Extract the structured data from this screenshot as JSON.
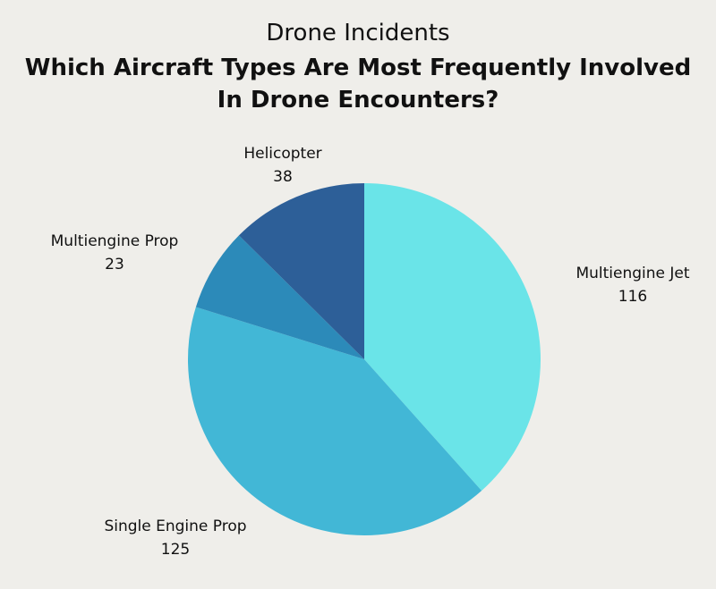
{
  "chart_data": {
    "type": "pie",
    "title": "Drone Incidents",
    "subtitle": "Which Aircraft Types Are Most Frequently Involved In Drone Encounters?",
    "categories": [
      "Multiengine Jet",
      "Single Engine Prop",
      "Multiengine Prop",
      "Helicopter"
    ],
    "values": [
      116,
      125,
      23,
      38
    ],
    "value_labels": [
      "116",
      "125",
      "23",
      "38"
    ],
    "colors": [
      "#6AE4E8",
      "#42B7D6",
      "#2C8AB9",
      "#2D5F98"
    ],
    "start_angle": "12 o'clock",
    "direction": "clockwise",
    "legend": "none"
  }
}
